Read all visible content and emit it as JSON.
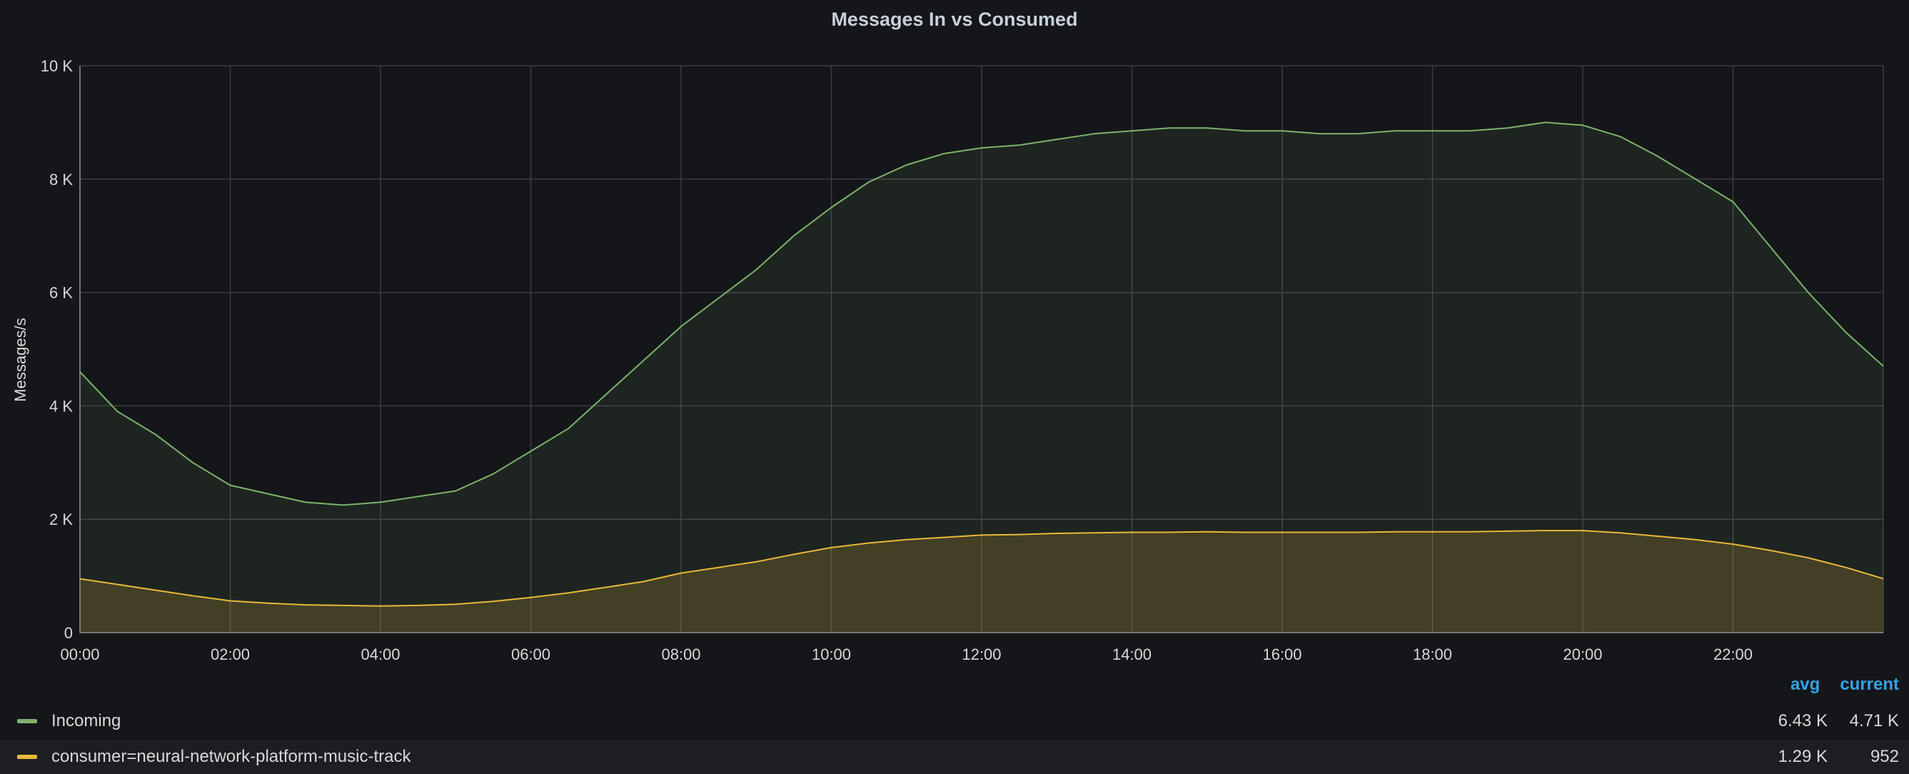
{
  "panel": {
    "title": "Messages In vs Consumed"
  },
  "legend": {
    "columns": [
      "avg",
      "current"
    ],
    "items": [
      {
        "name": "Incoming",
        "color": "#7eb26d",
        "avg": "6.43 K",
        "current": "4.71 K"
      },
      {
        "name": "consumer=neural-network-platform-music-track",
        "color": "#eab839",
        "avg": "1.29 K",
        "current": "952"
      }
    ]
  },
  "chart_data": {
    "type": "area",
    "title": "Messages In vs Consumed",
    "xlabel": "",
    "ylabel": "Messages/s",
    "xlim": [
      0,
      24
    ],
    "ylim": [
      0,
      10000
    ],
    "yticks": [
      0,
      2000,
      4000,
      6000,
      8000,
      10000
    ],
    "ytick_labels": [
      "0",
      "2 K",
      "4 K",
      "6 K",
      "8 K",
      "10 K"
    ],
    "xticks": [
      0,
      2,
      4,
      6,
      8,
      10,
      12,
      14,
      16,
      18,
      20,
      22
    ],
    "xtick_labels": [
      "00:00",
      "02:00",
      "04:00",
      "06:00",
      "08:00",
      "10:00",
      "12:00",
      "14:00",
      "16:00",
      "18:00",
      "20:00",
      "22:00"
    ],
    "grid": true,
    "legend_position": "bottom",
    "series": [
      {
        "name": "Incoming",
        "color": "#7eb26d",
        "x": [
          0,
          0.5,
          1,
          1.5,
          2,
          2.5,
          3,
          3.5,
          4,
          4.5,
          5,
          5.5,
          6,
          6.5,
          7,
          7.5,
          8,
          8.5,
          9,
          9.5,
          10,
          10.5,
          11,
          11.5,
          12,
          12.5,
          13,
          13.5,
          14,
          14.5,
          15,
          15.5,
          16,
          16.5,
          17,
          17.5,
          18,
          18.5,
          19,
          19.5,
          20,
          20.5,
          21,
          21.5,
          22,
          22.5,
          23,
          23.5,
          24
        ],
        "values": [
          4600,
          3900,
          3500,
          3000,
          2600,
          2450,
          2300,
          2250,
          2300,
          2400,
          2500,
          2800,
          3200,
          3600,
          4200,
          4800,
          5400,
          5900,
          6400,
          7000,
          7500,
          7950,
          8250,
          8450,
          8550,
          8600,
          8700,
          8800,
          8850,
          8900,
          8900,
          8850,
          8850,
          8800,
          8800,
          8850,
          8850,
          8850,
          8900,
          9000,
          8950,
          8750,
          8400,
          8000,
          7600,
          6800,
          6000,
          5300,
          4700
        ]
      },
      {
        "name": "consumer=neural-network-platform-music-track",
        "color": "#eab839",
        "x": [
          0,
          0.5,
          1,
          1.5,
          2,
          2.5,
          3,
          3.5,
          4,
          4.5,
          5,
          5.5,
          6,
          6.5,
          7,
          7.5,
          8,
          8.5,
          9,
          9.5,
          10,
          10.5,
          11,
          11.5,
          12,
          12.5,
          13,
          13.5,
          14,
          14.5,
          15,
          15.5,
          16,
          16.5,
          17,
          17.5,
          18,
          18.5,
          19,
          19.5,
          20,
          20.5,
          21,
          21.5,
          22,
          22.5,
          23,
          23.5,
          24
        ],
        "values": [
          950,
          850,
          750,
          650,
          560,
          520,
          490,
          480,
          470,
          480,
          500,
          550,
          620,
          700,
          800,
          900,
          1050,
          1150,
          1250,
          1380,
          1500,
          1580,
          1640,
          1680,
          1720,
          1730,
          1750,
          1760,
          1770,
          1770,
          1780,
          1770,
          1770,
          1770,
          1770,
          1780,
          1780,
          1780,
          1790,
          1800,
          1800,
          1760,
          1700,
          1640,
          1560,
          1450,
          1320,
          1150,
          952
        ]
      }
    ]
  }
}
